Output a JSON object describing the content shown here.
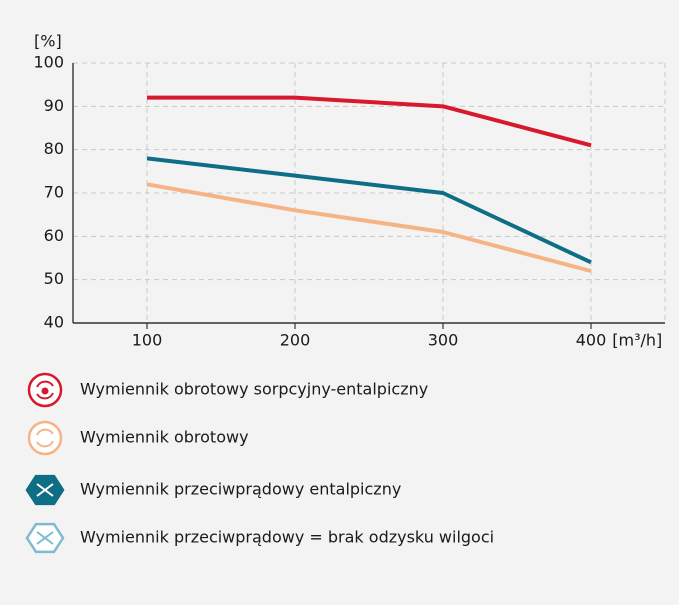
{
  "chart_data": {
    "type": "line",
    "y_label": "[%]",
    "x_label": "[m³/h]",
    "x": [
      100,
      200,
      300,
      400
    ],
    "series": [
      {
        "name": "Wymiennik obrotowy sorpcyjny-entalpiczny",
        "color": "#d7192e",
        "values": [
          92,
          92,
          90,
          81
        ]
      },
      {
        "name": "Wymiennik obrotowy",
        "color": "#f6b386",
        "values": [
          72,
          66,
          61,
          52
        ]
      },
      {
        "name": "Wymiennik przeciwprądowy entalpiczny",
        "color": "#0e6e86",
        "values": [
          78,
          74,
          70,
          54
        ]
      },
      {
        "name": "Wymiennik przeciwprądowy = brak odzysku wilgoci",
        "color": "#7fbad2",
        "values": [
          null,
          null,
          null,
          null
        ]
      }
    ],
    "xlim": [
      50,
      450
    ],
    "xticks": [
      100,
      200,
      300,
      400
    ],
    "ylim": [
      40,
      100
    ],
    "yticks": [
      40,
      50,
      60,
      70,
      80,
      90,
      100
    ],
    "grid": true
  }
}
